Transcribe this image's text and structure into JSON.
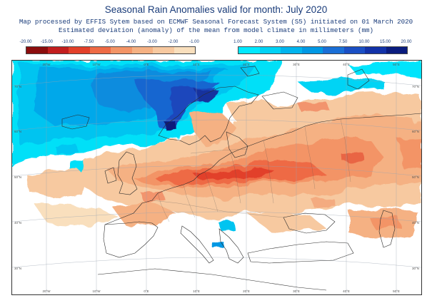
{
  "header": {
    "title": "Seasonal Rain Anomalies valid for month: July 2020",
    "line1": "Map processed by EFFIS Sytem based on ECMWF Seasonal Forecast System (S5) initiated on 01 March 2020",
    "line2": "Estimated deviation (anomaly) of the mean from model climate in millimeters (mm)"
  },
  "legend_negative": {
    "labels": [
      "-20.00",
      "-15.00",
      "-10.00",
      "-7.50",
      "-5.00",
      "-4.00",
      "-3.00",
      "-2.00",
      "-1.00"
    ],
    "colors": [
      "#8b0d0d",
      "#c21e1e",
      "#e2402a",
      "#ee6a45",
      "#f39466",
      "#f5b183",
      "#f7c9a0",
      "#f9dfbd"
    ]
  },
  "legend_positive": {
    "labels": [
      "1.00",
      "2.00",
      "3.00",
      "4.00",
      "5.00",
      "7.50",
      "10.00",
      "15.00",
      "20.00"
    ],
    "colors": [
      "#00e8ff",
      "#00d2f5",
      "#00b4ee",
      "#0098e4",
      "#1a6fd6",
      "#1a4fc4",
      "#1232a8",
      "#0a1c7e"
    ]
  },
  "map": {
    "lon_labels_top": [
      "20°W",
      "10°W",
      "0°E",
      "10°E",
      "20°E",
      "30°E",
      "40°E",
      "50°E"
    ],
    "lon_labels_bottom": [
      "20°W",
      "10°W",
      "0°E",
      "10°E",
      "20°E",
      "30°E",
      "40°E",
      "50°E"
    ],
    "lat_labels_left": [
      "70°N",
      "60°N",
      "50°N",
      "40°N",
      "30°N"
    ],
    "lat_labels_right": [
      "70°N",
      "60°N",
      "50°N",
      "40°N",
      "30°N"
    ]
  }
}
